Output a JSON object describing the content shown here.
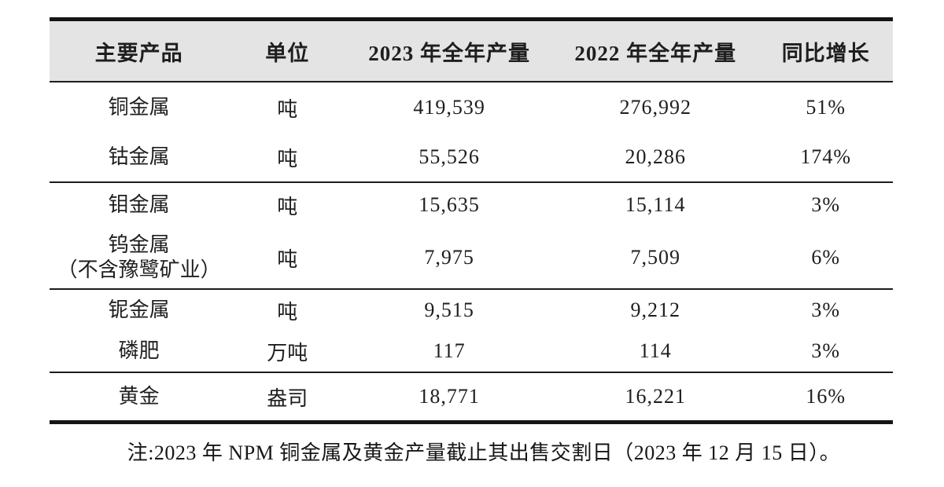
{
  "table": {
    "columns": [
      "主要产品",
      "单位",
      "2023 年全年产量",
      "2022 年全年产量",
      "同比增长"
    ],
    "rows": [
      {
        "product": "铜金属",
        "unit": "吨",
        "y2023": "419,539",
        "y2022": "276,992",
        "yoy": "51%"
      },
      {
        "product": "钴金属",
        "unit": "吨",
        "y2023": "55,526",
        "y2022": "20,286",
        "yoy": "174%"
      },
      {
        "product": "钼金属",
        "unit": "吨",
        "y2023": "15,635",
        "y2022": "15,114",
        "yoy": "3%"
      },
      {
        "product": "钨金属\n（不含豫鹭矿业）",
        "unit": "吨",
        "y2023": "7,975",
        "y2022": "7,509",
        "yoy": "6%"
      },
      {
        "product": "铌金属",
        "unit": "吨",
        "y2023": "9,515",
        "y2022": "9,212",
        "yoy": "3%"
      },
      {
        "product": "磷肥",
        "unit": "万吨",
        "y2023": "117",
        "y2022": "114",
        "yoy": "3%"
      },
      {
        "product": "黄金",
        "unit": "盎司",
        "y2023": "18,771",
        "y2022": "16,221",
        "yoy": "16%"
      }
    ]
  },
  "note": "注:2023 年 NPM 铜金属及黄金产量截止其出售交割日（2023 年 12 月 15 日）。",
  "colors": {
    "header_bg": "#e4e4e4",
    "border": "#151515",
    "text": "#1e1e1e"
  }
}
